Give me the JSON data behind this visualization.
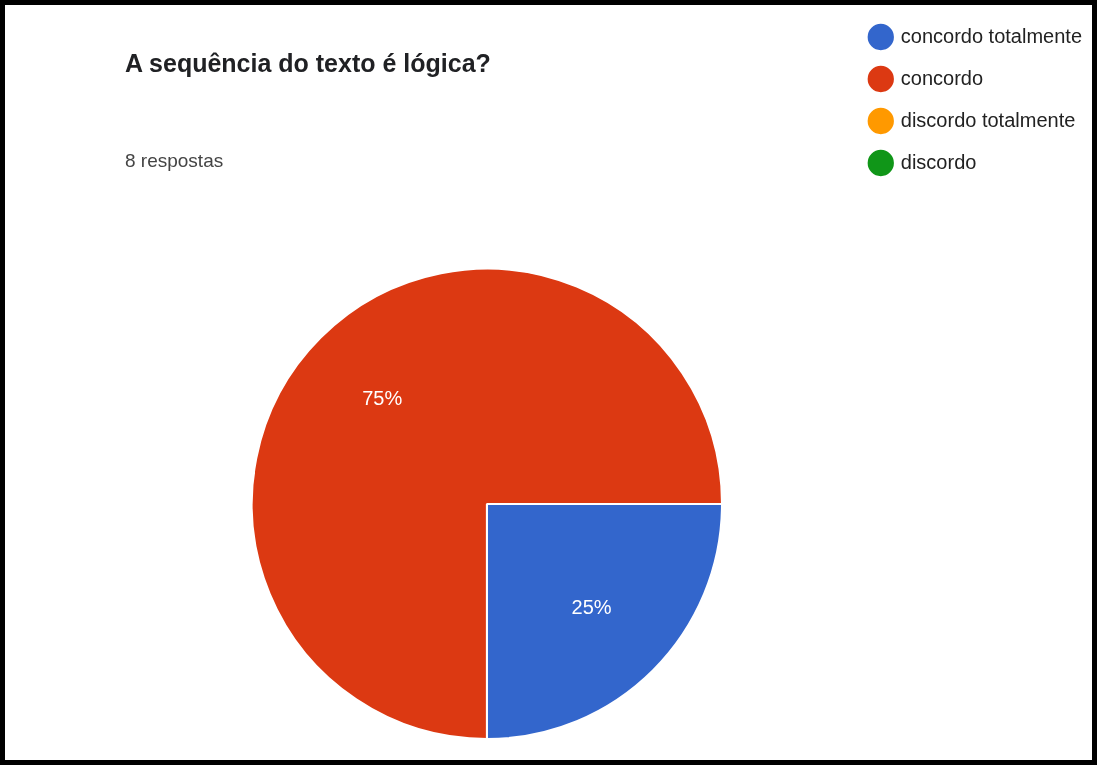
{
  "chart_data": {
    "type": "pie",
    "title": "A sequência do texto é lógica?",
    "subtitle": "8 respostas",
    "categories": [
      "concordo totalmente",
      "concordo",
      "discordo totalmente",
      "discordo"
    ],
    "values": [
      25,
      75,
      0,
      0
    ],
    "value_labels": [
      "25%",
      "75%",
      null,
      null
    ],
    "colors": [
      "#3366cc",
      "#dc3912",
      "#ff9900",
      "#109618"
    ],
    "legend": "top right"
  }
}
